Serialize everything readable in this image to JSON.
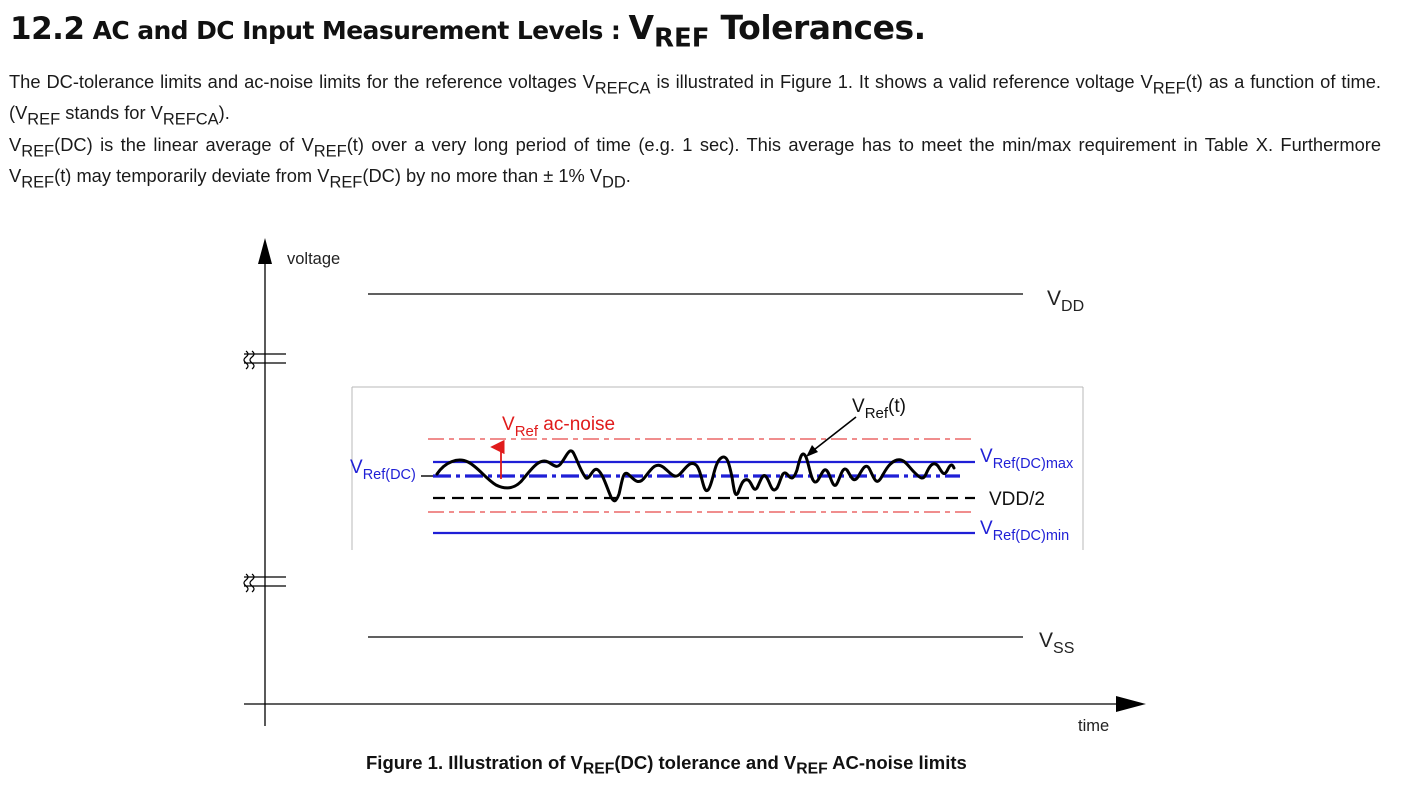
{
  "heading": {
    "number": "12.2",
    "text": " AC and DC Input Measurement Levels : ",
    "v_main": "V",
    "v_sub": "REF",
    "tail": " Tolerances."
  },
  "paragraph1": {
    "t1": "The DC-tolerance limits and ac-noise limits for the reference voltages V",
    "s1": "REFCA",
    "t2": " is illustrated in Figure 1. It shows a valid reference voltage V",
    "s2": "REF",
    "t3": "(t) as a function of time. (V",
    "s3": "REF",
    "t4": " stands for V",
    "s4": "REFCA",
    "t5": ")."
  },
  "paragraph2": {
    "t1": "V",
    "s1": "REF",
    "t2": "(DC) is the linear average of V",
    "s2": "REF",
    "t3": "(t) over a very long period of time (e.g. 1 sec). This average has to meet the min/max requirement in Table X. Furthermore V",
    "s3": "REF",
    "t4": "(t) may temporarily deviate from V",
    "s4": "REF",
    "t5": "(DC) by no more than ± 1% V",
    "s5": "DD",
    "t6": "."
  },
  "figure": {
    "y_axis_label": "voltage",
    "x_axis_label": "time",
    "vdd_main": "V",
    "vdd_sub": "DD",
    "vss_main": "V",
    "vss_sub": "SS",
    "vref_t_main": "V",
    "vref_t_sub": "Ref",
    "vref_t_tail": "(t)",
    "noise_main": "V",
    "noise_sub": "Ref",
    "noise_tail": " ac-noise",
    "vref_dc_main": "V",
    "vref_dc_sub": "Ref(DC)",
    "max_main": "V",
    "max_sub": "Ref(DC)max",
    "half_label": "VDD/2",
    "min_main": "V",
    "min_sub": "Ref(DC)min",
    "colors": {
      "axis": "#000000",
      "dc_limits": "#1f1fd6",
      "noise_limits": "#e01b1b",
      "annotation": "#e01b1b",
      "signal": "#000000"
    }
  },
  "caption": {
    "t1": "Figure 1. Illustration of V",
    "s1": "REF",
    "t2": "(DC) tolerance and V",
    "s2": "REF",
    "t3": " AC-noise limits"
  }
}
